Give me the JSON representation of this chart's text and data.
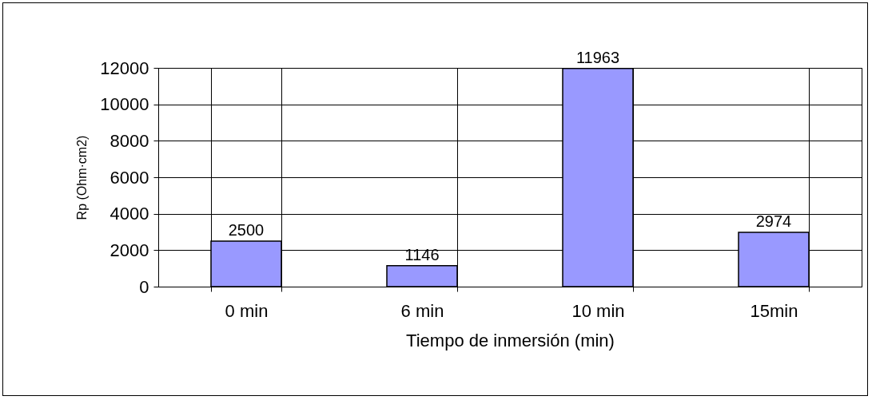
{
  "chart_data": {
    "type": "bar",
    "xlabel": "Tiempo de inmersión (min)",
    "ylabel": "Rp (Ohm·cm2)",
    "categories": [
      "0 min",
      "6 min",
      "10 min",
      "15min"
    ],
    "values": [
      2500,
      1146,
      11963,
      2974
    ],
    "color": "#9999ff",
    "ylim": [
      0,
      12000
    ],
    "yticks": [
      0,
      2000,
      4000,
      6000,
      8000,
      10000,
      12000
    ],
    "grid": true,
    "data_labels": true
  }
}
